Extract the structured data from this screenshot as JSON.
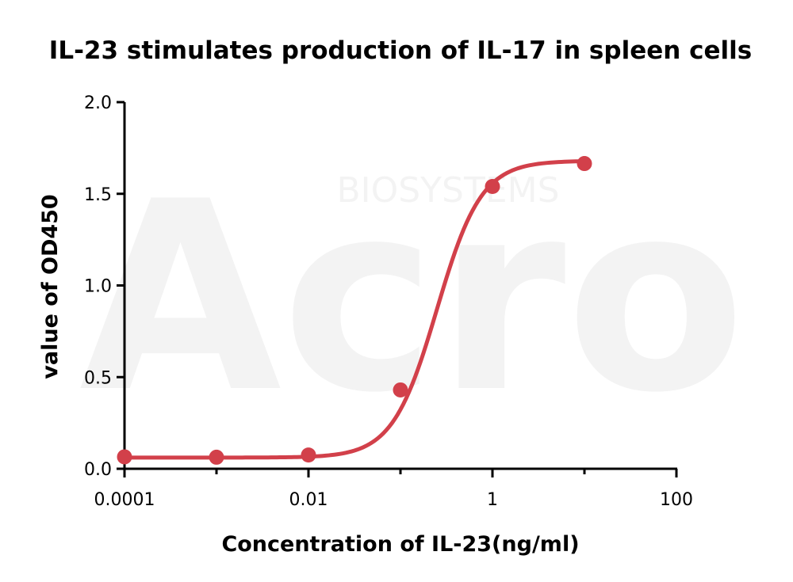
{
  "chart_data": {
    "type": "scatter",
    "title": "IL-23 stimulates production of IL-17 in spleen cells",
    "xlabel": "Concentration of IL-23(ng/ml)",
    "ylabel": "value of OD450",
    "xscale": "log",
    "xlim": [
      0.0001,
      100
    ],
    "ylim": [
      0,
      2.0
    ],
    "xticks": [
      0.0001,
      0.01,
      1,
      100
    ],
    "xtick_labels": [
      "0.0001",
      "0.01",
      "1",
      "100"
    ],
    "yticks": [
      0,
      0.5,
      1.0,
      1.5,
      2.0
    ],
    "ytick_labels": [
      "0.0",
      "0.5",
      "1.0",
      "1.5",
      "2.0"
    ],
    "grid": false,
    "series": [
      {
        "x": [
          0.0001,
          0.001,
          0.01,
          0.1,
          1,
          10
        ],
        "y": [
          0.065,
          0.063,
          0.075,
          0.43,
          1.54,
          1.665
        ],
        "color": "#d2404a",
        "fit": "sigmoidal"
      }
    ]
  },
  "watermark": {
    "brand": "Acro",
    "sub": "BIOSYSTEMS"
  }
}
